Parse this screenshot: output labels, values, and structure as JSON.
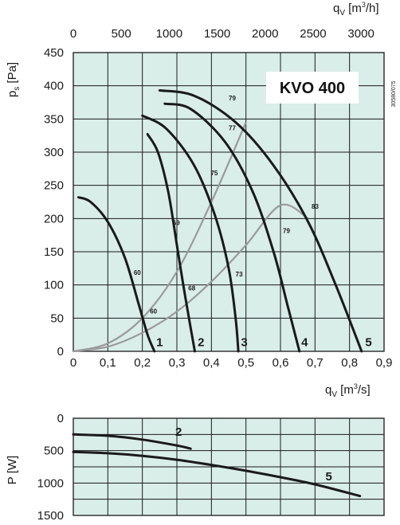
{
  "chart_data": [
    {
      "type": "line",
      "title": "KVO 400",
      "code": "30580/075",
      "colors": {
        "plot_bg": "#d9ede9",
        "grid": "#1a1a1a",
        "fan_curve": "#1a1a1a",
        "system_curve": "#9a9a9a"
      },
      "grid": true,
      "xlabel": {
        "base": "q",
        "sub": "V",
        "unit_pre": " [m",
        "unit_sup": "3",
        "unit_post": "/s]"
      },
      "ylabel": {
        "base": "p",
        "sub": "s",
        "unit": " [Pa]"
      },
      "top_xlabel": {
        "base": "q",
        "sub": "V",
        "unit_pre": " [m",
        "unit_sup": "3",
        "unit_post": "/h]"
      },
      "xlim": [
        0,
        0.9
      ],
      "ylim": [
        0,
        450
      ],
      "top_xlim_m3h": [
        0,
        3240
      ],
      "x_ticks": [
        "0",
        "0,1",
        "0,2",
        "0,3",
        "0,4",
        "0,5",
        "0,6",
        "0,7",
        "0,8",
        "0,9"
      ],
      "y_ticks": [
        "0",
        "50",
        "100",
        "150",
        "200",
        "250",
        "300",
        "350",
        "400",
        "450"
      ],
      "top_x_ticks": [
        "0",
        "500",
        "1000",
        "1500",
        "2000",
        "2500",
        "3000"
      ],
      "series": [
        {
          "name": "1",
          "kind": "fan",
          "x": [
            0.015,
            0.05,
            0.1,
            0.15,
            0.19,
            0.215,
            0.235
          ],
          "y": [
            232,
            225,
            195,
            140,
            70,
            25,
            0
          ]
        },
        {
          "name": "2",
          "kind": "fan",
          "x": [
            0.215,
            0.245,
            0.275,
            0.3,
            0.32,
            0.34,
            0.352
          ],
          "y": [
            327,
            300,
            240,
            160,
            95,
            35,
            0
          ]
        },
        {
          "name": "3",
          "kind": "fan",
          "x": [
            0.2,
            0.27,
            0.35,
            0.41,
            0.45,
            0.47,
            0.478
          ],
          "y": [
            355,
            335,
            280,
            205,
            125,
            50,
            0
          ]
        },
        {
          "name": "4",
          "kind": "fan",
          "x": [
            0.265,
            0.34,
            0.44,
            0.52,
            0.58,
            0.62,
            0.655
          ],
          "y": [
            373,
            365,
            315,
            240,
            150,
            70,
            0
          ]
        },
        {
          "name": "5",
          "kind": "fan",
          "x": [
            0.25,
            0.35,
            0.47,
            0.58,
            0.68,
            0.76,
            0.835
          ],
          "y": [
            393,
            385,
            345,
            280,
            195,
            100,
            0
          ]
        }
      ],
      "system_curves": [
        {
          "x": [
            0,
            0.1,
            0.2,
            0.3,
            0.4,
            0.5
          ],
          "y": [
            0,
            12,
            50,
            120,
            225,
            345
          ]
        },
        {
          "x": [
            0,
            0.1,
            0.2,
            0.3,
            0.4,
            0.5,
            0.6,
            0.68
          ],
          "y": [
            0,
            7,
            28,
            60,
            105,
            160,
            220,
            200
          ]
        }
      ],
      "point_labels": [
        {
          "text": "60",
          "x": 0.175,
          "y": 115
        },
        {
          "text": "60",
          "x": 0.222,
          "y": 57
        },
        {
          "text": "69",
          "x": 0.288,
          "y": 190
        },
        {
          "text": "68",
          "x": 0.333,
          "y": 92
        },
        {
          "text": "75",
          "x": 0.398,
          "y": 265
        },
        {
          "text": "73",
          "x": 0.47,
          "y": 113
        },
        {
          "text": "77",
          "x": 0.45,
          "y": 333
        },
        {
          "text": "79",
          "x": 0.45,
          "y": 378
        },
        {
          "text": "79",
          "x": 0.607,
          "y": 178
        },
        {
          "text": "83",
          "x": 0.69,
          "y": 215
        }
      ],
      "curve_numbers": [
        {
          "text": "1",
          "x": 0.25,
          "y": 8
        },
        {
          "text": "2",
          "x": 0.37,
          "y": 8
        },
        {
          "text": "3",
          "x": 0.495,
          "y": 8
        },
        {
          "text": "4",
          "x": 0.67,
          "y": 8
        },
        {
          "text": "5",
          "x": 0.855,
          "y": 8
        }
      ]
    },
    {
      "type": "line",
      "ylabel": {
        "base": "P",
        "unit": " [W]"
      },
      "xlim": [
        0,
        0.9
      ],
      "ylim": [
        0,
        1500
      ],
      "y_inverted": true,
      "y_ticks": [
        "0",
        "500",
        "1000",
        "1500"
      ],
      "series": [
        {
          "name": "2",
          "x": [
            0,
            0.1,
            0.2,
            0.3,
            0.34
          ],
          "y": [
            250,
            270,
            330,
            420,
            470
          ]
        },
        {
          "name": "5",
          "x": [
            0,
            0.1,
            0.2,
            0.3,
            0.4,
            0.5,
            0.6,
            0.7,
            0.83
          ],
          "y": [
            520,
            540,
            580,
            640,
            720,
            810,
            910,
            1020,
            1200
          ]
        }
      ],
      "curve_numbers": [
        {
          "text": "2",
          "x": 0.305,
          "y": 270
        },
        {
          "text": "5",
          "x": 0.74,
          "y": 960
        }
      ]
    }
  ]
}
